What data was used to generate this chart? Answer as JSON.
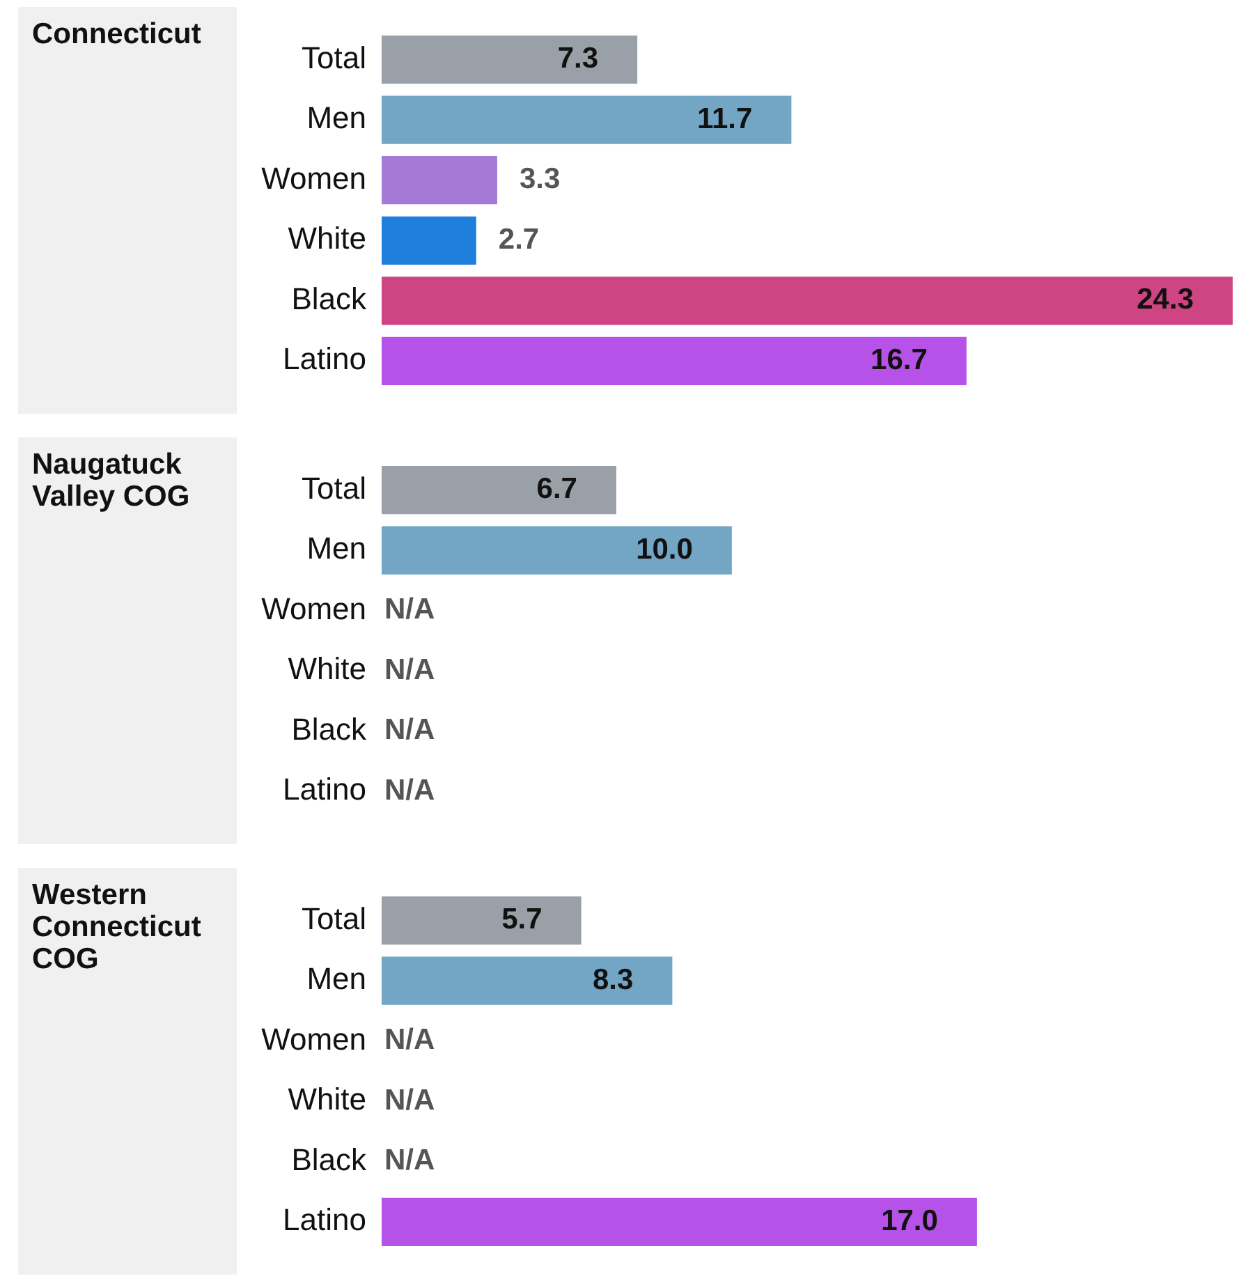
{
  "chart_data": [
    {
      "type": "bar",
      "orientation": "horizontal",
      "title": "Connecticut",
      "categories": [
        "Total",
        "Men",
        "Women",
        "White",
        "Black",
        "Latino"
      ],
      "values": [
        7.3,
        11.7,
        3.3,
        2.7,
        24.3,
        16.7
      ],
      "colors": [
        "#9aa0a8",
        "#72a6c4",
        "#a57ad6",
        "#1f7fdc",
        "#cf4482",
        "#b652e8"
      ],
      "value_labels": [
        "7.3",
        "11.7",
        "3.3",
        "2.7",
        "24.3",
        "16.7"
      ],
      "xlim": [
        0,
        24.3
      ],
      "tick_labels": "y"
    },
    {
      "type": "bar",
      "orientation": "horizontal",
      "title": "Naugatuck Valley COG",
      "categories": [
        "Total",
        "Men",
        "Women",
        "White",
        "Black",
        "Latino"
      ],
      "values": [
        6.7,
        10.0,
        null,
        null,
        null,
        null
      ],
      "colors": [
        "#9aa0a8",
        "#72a6c4",
        "#a57ad6",
        "#1f7fdc",
        "#cf4482",
        "#b652e8"
      ],
      "value_labels": [
        "6.7",
        "10.0",
        "N/A",
        "N/A",
        "N/A",
        "N/A"
      ],
      "tick_labels": "y"
    },
    {
      "type": "bar",
      "orientation": "horizontal",
      "title": "Western Connecticut COG",
      "categories": [
        "Total",
        "Men",
        "Women",
        "White",
        "Black",
        "Latino"
      ],
      "values": [
        5.7,
        8.3,
        null,
        null,
        null,
        17.0
      ],
      "colors": [
        "#9aa0a8",
        "#72a6c4",
        "#a57ad6",
        "#1f7fdc",
        "#cf4482",
        "#b652e8"
      ],
      "value_labels": [
        "5.7",
        "8.3",
        "N/A",
        "N/A",
        "N/A",
        "17.0"
      ],
      "tick_labels": "y"
    }
  ]
}
